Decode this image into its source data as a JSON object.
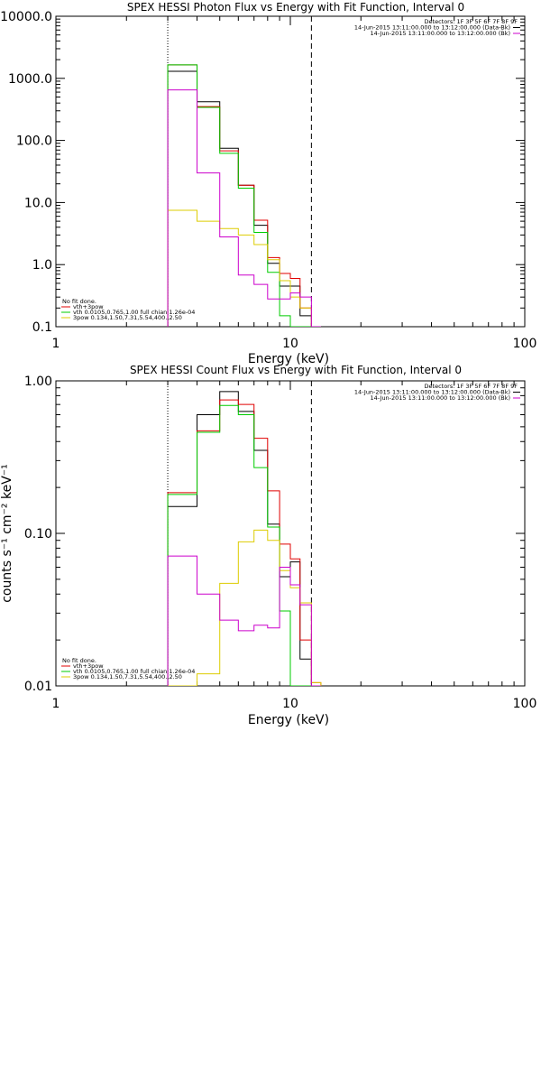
{
  "chart_data": [
    {
      "type": "line",
      "title": "SPEX HESSI Photon Flux vs Energy with Fit Function, Interval 0",
      "xlabel": "Energy (keV)",
      "ylabel": "",
      "xscale": "log",
      "yscale": "log",
      "xlim": [
        1,
        100
      ],
      "ylim": [
        0.1,
        10000
      ],
      "xticks": [
        {
          "v": 1,
          "label": "1"
        },
        {
          "v": 10,
          "label": "10"
        },
        {
          "v": 100,
          "label": "100"
        }
      ],
      "yticks": [
        {
          "v": 0.1,
          "label": "0.1"
        },
        {
          "v": 1,
          "label": "1.0"
        },
        {
          "v": 10,
          "label": "10.0"
        },
        {
          "v": 100,
          "label": "100.0"
        },
        {
          "v": 1000,
          "label": "1000.0"
        },
        {
          "v": 10000,
          "label": "10000.0"
        }
      ],
      "vlines": [
        {
          "x": 3,
          "style": "dotted"
        },
        {
          "x": 12.3,
          "style": "dashed"
        }
      ],
      "info_lines": [
        "Detectors: 1F 3F 5F 6F 7F 8F 9F",
        "14-Jun-2015 13:11:00.000 to 13:12:00.000 (Data-Bk)",
        "14-Jun-2015 13:11:00.000 to 13:12:00.000 (Bk)"
      ],
      "info_colors": [
        "",
        "#000000",
        "#cc00cc"
      ],
      "legend_lines": [
        {
          "text": "No fit done.",
          "color": ""
        },
        {
          "text": "vth+3pow",
          "color": "#e00000"
        },
        {
          "text": "vth 0.0105,0.765,1.00  full chian 1.26e-04",
          "color": "#00cc00"
        },
        {
          "text": "3pow 0.134,1.50,7.31,5.54,400.,2.50",
          "color": "#ddcc00"
        }
      ],
      "edges": [
        3,
        4,
        5,
        6,
        7,
        8,
        9,
        10,
        11,
        12.3,
        13.5
      ],
      "series": [
        {
          "color": "#000000",
          "values": [
            1300,
            420,
            75,
            19,
            4.3,
            1.05,
            0.45,
            0.45,
            0.15,
            0.1
          ]
        },
        {
          "color": "#e00000",
          "values": [
            1650,
            350,
            68,
            19,
            5.2,
            1.3,
            0.72,
            0.6,
            0.2,
            0.1
          ]
        },
        {
          "color": "#00cc00",
          "values": [
            1650,
            340,
            62,
            17,
            3.3,
            0.75,
            0.15,
            0.09,
            0.09,
            0.09
          ]
        },
        {
          "color": "#ddcc00",
          "values": [
            7.5,
            5,
            3.8,
            3,
            2.1,
            1.2,
            0.55,
            0.3,
            0.2,
            0.1
          ]
        },
        {
          "color": "#cc00cc",
          "values": [
            650,
            30,
            2.8,
            0.68,
            0.48,
            0.28,
            0.28,
            0.35,
            0.3,
            0.1
          ]
        }
      ]
    },
    {
      "type": "line",
      "title": "SPEX HESSI Count Flux vs Energy with Fit Function, Interval 0",
      "xlabel": "Energy (keV)",
      "ylabel": "counts s⁻¹ cm⁻² keV⁻¹",
      "xscale": "log",
      "yscale": "log",
      "xlim": [
        1,
        100
      ],
      "ylim": [
        0.01,
        1
      ],
      "xticks": [
        {
          "v": 1,
          "label": "1"
        },
        {
          "v": 10,
          "label": "10"
        },
        {
          "v": 100,
          "label": "100"
        }
      ],
      "yticks": [
        {
          "v": 0.01,
          "label": "0.01"
        },
        {
          "v": 0.1,
          "label": "0.10"
        },
        {
          "v": 1,
          "label": "1.00"
        }
      ],
      "vlines": [
        {
          "x": 3,
          "style": "dotted"
        },
        {
          "x": 12.3,
          "style": "dashed"
        }
      ],
      "info_lines": [
        "Detectors: 1F 3F 5F 6F 7F 8F 9F",
        "14-Jun-2015 13:11:00.000 to 13:12:00.000 (Data-Bk)",
        "14-Jun-2015 13:11:00.000 to 13:12:00.000 (Bk)"
      ],
      "info_colors": [
        "",
        "#000000",
        "#cc00cc"
      ],
      "legend_lines": [
        {
          "text": "No fit done.",
          "color": ""
        },
        {
          "text": "vth+3pow",
          "color": "#e00000"
        },
        {
          "text": "vth 0.0105,0.765,1.00  full chian 1.26e-04",
          "color": "#00cc00"
        },
        {
          "text": "3pow 0.134,1.50,7.31,5.54,400.,2.50",
          "color": "#ddcc00"
        }
      ],
      "edges": [
        3,
        4,
        5,
        6,
        7,
        8,
        9,
        10,
        11,
        12.3,
        13.5
      ],
      "series": [
        {
          "color": "#000000",
          "values": [
            0.15,
            0.6,
            0.85,
            0.63,
            0.35,
            0.115,
            0.052,
            0.065,
            0.015,
            0.0095
          ]
        },
        {
          "color": "#e00000",
          "values": [
            0.185,
            0.47,
            0.75,
            0.7,
            0.42,
            0.19,
            0.085,
            0.068,
            0.02,
            0.0105
          ]
        },
        {
          "color": "#00cc00",
          "values": [
            0.18,
            0.46,
            0.69,
            0.6,
            0.27,
            0.11,
            0.031,
            0.0095,
            0.0095,
            0.0095
          ]
        },
        {
          "color": "#ddcc00",
          "values": [
            0.0095,
            0.012,
            0.047,
            0.088,
            0.105,
            0.09,
            0.057,
            0.044,
            0.035,
            0.0105
          ]
        },
        {
          "color": "#cc00cc",
          "values": [
            0.071,
            0.04,
            0.027,
            0.023,
            0.025,
            0.024,
            0.06,
            0.046,
            0.034,
            0.0095
          ]
        }
      ]
    }
  ]
}
